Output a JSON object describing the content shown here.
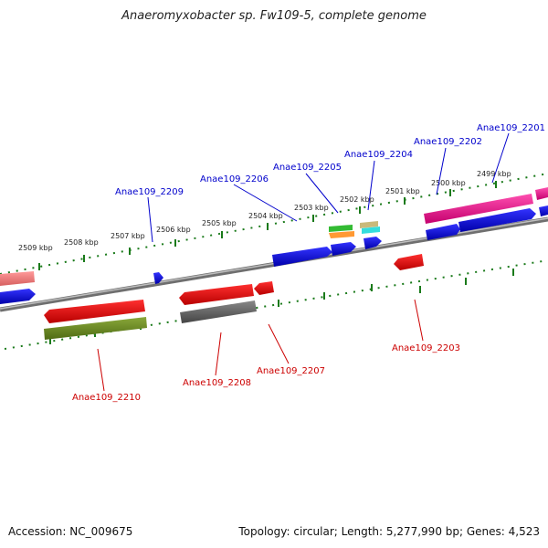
{
  "title": "Anaeromyxobacter sp. Fw109-5, complete genome",
  "footer": {
    "accession": "Accession: NC_009675",
    "summary": "Topology: circular; Length: 5,277,990 bp; Genes: 4,523"
  },
  "colors": {
    "forward_label": "#0000cc",
    "reverse_label": "#cc0000",
    "ruler": "#1a7a1a",
    "backbone": "#777777"
  },
  "kbp_ticks": [
    "2499 kbp",
    "2500 kbp",
    "2501 kbp",
    "2502 kbp",
    "2503 kbp",
    "2504 kbp",
    "2505 kbp",
    "2506 kbp",
    "2507 kbp",
    "2508 kbp",
    "2509 kbp"
  ],
  "forward_labels": [
    "Anae109_2201",
    "Anae109_2202",
    "Anae109_2204",
    "Anae109_2205",
    "Anae109_2206",
    "Anae109_2209"
  ],
  "reverse_labels": [
    "Anae109_2203",
    "Anae109_2207",
    "Anae109_2208",
    "Anae109_2210"
  ]
}
